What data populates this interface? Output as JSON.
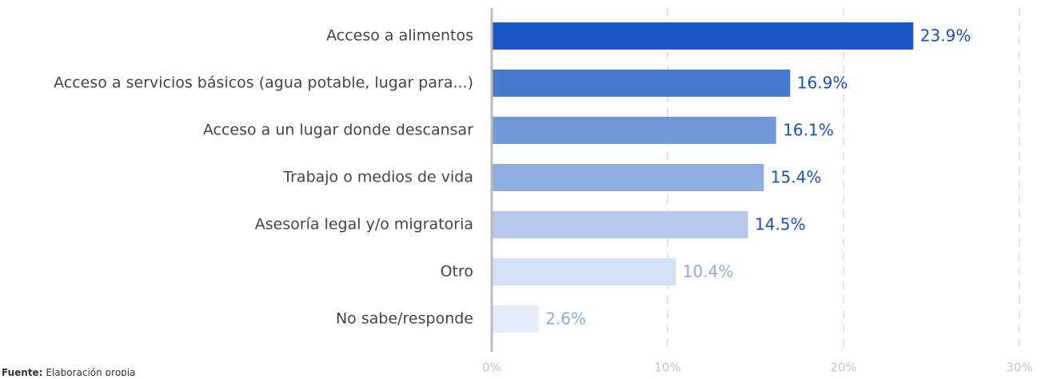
{
  "chart_data": {
    "type": "bar",
    "orientation": "horizontal",
    "categories": [
      "Acceso a alimentos",
      "Acceso a servicios básicos (agua potable, lugar para...)",
      "Acceso a un lugar donde descansar",
      "Trabajo o medios de vida",
      "Asesoría legal y/o migratoria",
      "Otro",
      "No sabe/responde"
    ],
    "values": [
      23.9,
      16.9,
      16.1,
      15.4,
      14.5,
      10.4,
      2.6
    ],
    "value_labels": [
      "23.9%",
      "16.9%",
      "16.1%",
      "15.4%",
      "14.5%",
      "10.4%",
      "2.6%"
    ],
    "colors": [
      "#1a56c4",
      "#4a7ad0",
      "#7199da",
      "#8eaee2",
      "#b6c9ec",
      "#d3dff4",
      "#e6edf9"
    ],
    "value_label_colors": [
      "#1a4fb8",
      "#1a4fb8",
      "#1a4fb8",
      "#1a4fb8",
      "#1a4fb8",
      "#8eaadc",
      "#8eaadc"
    ],
    "xlim": [
      0,
      30
    ],
    "xticks": [
      {
        "value": 0,
        "label": "0%"
      },
      {
        "value": 10,
        "label": "10%"
      },
      {
        "value": 20,
        "label": "20%"
      },
      {
        "value": 30,
        "label": "30%"
      }
    ],
    "grid": true,
    "note": {
      "label": "Fuente:",
      "text": "Elaboración propia"
    }
  }
}
